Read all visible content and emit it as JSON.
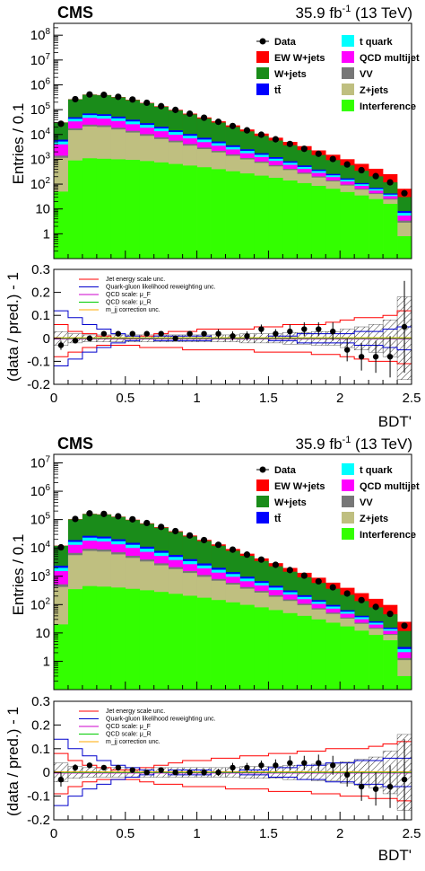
{
  "figure": {
    "experiment": "CMS",
    "luminosity": "35.9 fb",
    "lumi_exp": "-1",
    "energy": "(13 TeV)"
  },
  "legend": {
    "items": [
      {
        "label": "Data",
        "color": "#000000",
        "kind": "marker"
      },
      {
        "label": "EW W+jets",
        "color": "#ff0000",
        "kind": "box"
      },
      {
        "label": "W+jets",
        "color": "#1a8c1a",
        "kind": "box"
      },
      {
        "label": "tt̄",
        "color": "#0000ff",
        "kind": "box"
      },
      {
        "label": "t quark",
        "color": "#00ffff",
        "kind": "box"
      },
      {
        "label": "QCD multijet",
        "color": "#ff00ff",
        "kind": "box"
      },
      {
        "label": "VV",
        "color": "#777777",
        "kind": "box"
      },
      {
        "label": "Z+jets",
        "color": "#bfbf80",
        "kind": "box"
      },
      {
        "label": "Interference",
        "color": "#33ff00",
        "kind": "box"
      }
    ]
  },
  "ratio_legend": {
    "items": [
      {
        "label": "Jet energy scale unc.",
        "color": "#ff0000"
      },
      {
        "label": "Quark-gluon likelihood reweighting unc.",
        "color": "#0000cc"
      },
      {
        "label": "QCD scale:  μ_F",
        "color": "#cc00cc"
      },
      {
        "label": "QCD scale:  μ_R",
        "color": "#00cc00"
      },
      {
        "label": "m_jj correction unc.",
        "color": "#ffaa00"
      }
    ]
  },
  "axes": {
    "main_ylabel": "Entries / 0.1",
    "ratio_ylabel": "(data / pred.) - 1",
    "xlabel": "BDT'",
    "x_ticks": [
      "0",
      "0.5",
      "1",
      "1.5",
      "2",
      "2.5"
    ],
    "ratio_ticks": [
      "0.3",
      "0.2",
      "0.1",
      "0",
      "-0.1",
      "-0.2"
    ]
  },
  "chart_data": [
    {
      "type": "bar",
      "title": "",
      "stacked": true,
      "log_y": true,
      "x_bin_width": 0.1,
      "xlim": [
        0,
        2.5
      ],
      "ylim": [
        0.1,
        300000000
      ],
      "y_ticks": [
        "1",
        "10",
        "10^2",
        "10^3",
        "10^4",
        "10^5",
        "10^6",
        "10^7",
        "10^8"
      ],
      "x_bin_centers": [
        0.05,
        0.15,
        0.25,
        0.35,
        0.45,
        0.55,
        0.65,
        0.75,
        0.85,
        0.95,
        1.05,
        1.15,
        1.25,
        1.35,
        1.45,
        1.55,
        1.65,
        1.75,
        1.85,
        1.95,
        2.05,
        2.15,
        2.25,
        2.35,
        2.45
      ],
      "series": [
        {
          "name": "Interference",
          "values": [
            50,
            900,
            1100,
            1050,
            1000,
            950,
            850,
            750,
            650,
            560,
            480,
            400,
            330,
            270,
            220,
            180,
            140,
            110,
            85,
            65,
            48,
            35,
            25,
            16,
            0.8
          ]
        },
        {
          "name": "Z+jets",
          "values": [
            1100,
            14000,
            20000,
            19000,
            15000,
            11000,
            8000,
            5800,
            4200,
            3000,
            2100,
            1500,
            1050,
            720,
            500,
            340,
            230,
            150,
            100,
            64,
            40,
            25,
            15,
            8,
            2
          ]
        },
        {
          "name": "VV",
          "values": [
            250,
            2800,
            3800,
            3500,
            2800,
            2100,
            1500,
            1100,
            800,
            570,
            400,
            280,
            200,
            140,
            95,
            65,
            44,
            30,
            20,
            13,
            8,
            5,
            3,
            1.8,
            0.6
          ]
        },
        {
          "name": "QCD multijet",
          "values": [
            2600,
            16000,
            22000,
            20000,
            16000,
            11800,
            8400,
            5900,
            4100,
            2850,
            1950,
            1350,
            920,
            620,
            420,
            280,
            185,
            120,
            78,
            50,
            32,
            20,
            12,
            7,
            2
          ]
        },
        {
          "name": "t quark",
          "values": [
            1200,
            9000,
            13500,
            12500,
            10000,
            7600,
            5500,
            3900,
            2750,
            1900,
            1320,
            910,
            620,
            420,
            280,
            188,
            125,
            82,
            54,
            35,
            22,
            14,
            8.5,
            5,
            1.5
          ]
        },
        {
          "name": "tt̄",
          "values": [
            1000,
            6800,
            10000,
            9500,
            7800,
            6000,
            4400,
            3200,
            2300,
            1620,
            1130,
            790,
            545,
            370,
            250,
            168,
            112,
            74,
            48,
            31,
            20,
            12,
            7.5,
            4.3,
            1.3
          ]
        },
        {
          "name": "W+jets",
          "values": [
            24000,
            210000,
            330000,
            315000,
            262000,
            204000,
            152000,
            110000,
            78000,
            54000,
            37000,
            25000,
            16500,
            10800,
            7000,
            4500,
            2850,
            1780,
            1100,
            670,
            400,
            235,
            135,
            76,
            22
          ]
        },
        {
          "name": "EW W+jets",
          "values": [
            500,
            5000,
            7500,
            8000,
            8000,
            7500,
            7000,
            6300,
            5600,
            4900,
            4300,
            3700,
            3100,
            2600,
            2100,
            1700,
            1350,
            1050,
            800,
            600,
            440,
            310,
            210,
            135,
            35
          ]
        }
      ],
      "data_points": [
        27000,
        265000,
        410000,
        395000,
        330000,
        257000,
        190000,
        138000,
        98000,
        69000,
        47500,
        32500,
        22000,
        14700,
        9800,
        6400,
        4150,
        2650,
        1670,
        1030,
        620,
        365,
        210,
        118,
        43
      ]
    },
    {
      "type": "scatter",
      "title": "",
      "ylim": [
        -0.2,
        0.3
      ],
      "xlim": [
        0,
        2.5
      ],
      "x": [
        0.05,
        0.15,
        0.25,
        0.35,
        0.45,
        0.55,
        0.65,
        0.75,
        0.85,
        0.95,
        1.05,
        1.15,
        1.25,
        1.35,
        1.45,
        1.55,
        1.65,
        1.75,
        1.85,
        1.95,
        2.05,
        2.15,
        2.25,
        2.35,
        2.45
      ],
      "y": [
        -0.03,
        -0.01,
        0.0,
        0.02,
        0.02,
        0.02,
        0.02,
        0.02,
        0.0,
        0.02,
        0.02,
        0.02,
        0.01,
        0.01,
        0.04,
        0.02,
        0.03,
        0.04,
        0.04,
        0.03,
        -0.05,
        -0.08,
        -0.08,
        -0.08,
        0.05
      ],
      "y_err": [
        0.02,
        0.01,
        0.01,
        0.01,
        0.01,
        0.01,
        0.01,
        0.01,
        0.01,
        0.01,
        0.01,
        0.02,
        0.02,
        0.02,
        0.02,
        0.02,
        0.03,
        0.03,
        0.03,
        0.04,
        0.05,
        0.06,
        0.07,
        0.09,
        0.2
      ],
      "band_halfwidth": [
        0.03,
        0.02,
        0.015,
        0.015,
        0.015,
        0.015,
        0.015,
        0.015,
        0.015,
        0.015,
        0.015,
        0.015,
        0.015,
        0.02,
        0.02,
        0.02,
        0.025,
        0.025,
        0.03,
        0.03,
        0.04,
        0.05,
        0.06,
        0.08,
        0.18
      ],
      "jes_up": [
        0.06,
        0.03,
        0.02,
        0.01,
        0.0,
        0.0,
        0.01,
        0.02,
        0.03,
        0.03,
        0.04,
        0.04,
        0.04,
        0.04,
        0.05,
        0.05,
        0.06,
        0.06,
        0.06,
        0.07,
        0.08,
        0.09,
        0.09,
        0.1,
        0.12
      ],
      "jes_down": [
        -0.08,
        -0.06,
        -0.04,
        -0.03,
        -0.03,
        -0.03,
        -0.04,
        -0.04,
        -0.04,
        -0.05,
        -0.05,
        -0.05,
        -0.05,
        -0.05,
        -0.06,
        -0.06,
        -0.06,
        -0.06,
        -0.07,
        -0.07,
        -0.08,
        -0.09,
        -0.1,
        -0.1,
        -0.11
      ],
      "qg_up": [
        0.12,
        0.09,
        0.06,
        0.04,
        0.02,
        0.01,
        0.0,
        -0.01,
        -0.01,
        -0.01,
        -0.01,
        0.0,
        0.0,
        0.0,
        0.0,
        0.01,
        0.01,
        0.02,
        0.02,
        0.02,
        0.02,
        0.03,
        0.03,
        0.04,
        0.05
      ],
      "qg_down": [
        -0.12,
        -0.09,
        -0.06,
        -0.04,
        -0.02,
        -0.01,
        0.0,
        0.01,
        0.01,
        0.01,
        0.01,
        0.0,
        0.0,
        0.0,
        0.0,
        -0.01,
        -0.01,
        -0.02,
        -0.02,
        -0.02,
        -0.02,
        -0.03,
        -0.03,
        -0.04,
        -0.05
      ]
    },
    {
      "type": "bar",
      "title": "",
      "stacked": true,
      "log_y": true,
      "x_bin_width": 0.1,
      "xlim": [
        0,
        2.5
      ],
      "ylim": [
        0.1,
        20000000
      ],
      "y_ticks": [
        "1",
        "10",
        "10^2",
        "10^3",
        "10^4",
        "10^5",
        "10^6",
        "10^7"
      ],
      "x_bin_centers": [
        0.05,
        0.15,
        0.25,
        0.35,
        0.45,
        0.55,
        0.65,
        0.75,
        0.85,
        0.95,
        1.05,
        1.15,
        1.25,
        1.35,
        1.45,
        1.55,
        1.65,
        1.75,
        1.85,
        1.95,
        2.05,
        2.15,
        2.25,
        2.35,
        2.45
      ],
      "series": [
        {
          "name": "Interference",
          "values": [
            20,
            350,
            450,
            430,
            400,
            360,
            320,
            280,
            240,
            205,
            175,
            145,
            120,
            98,
            80,
            64,
            50,
            40,
            30,
            23,
            17,
            12,
            8.5,
            5.5,
            0.3
          ]
        },
        {
          "name": "Z+jets",
          "values": [
            400,
            5200,
            7400,
            7000,
            5500,
            4100,
            3000,
            2150,
            1550,
            1100,
            780,
            550,
            390,
            265,
            185,
            125,
            85,
            56,
            37,
            24,
            15,
            9,
            5.5,
            3,
            0.8
          ]
        },
        {
          "name": "VV",
          "values": [
            100,
            1100,
            1500,
            1400,
            1100,
            820,
            600,
            430,
            310,
            220,
            155,
            108,
            76,
            53,
            37,
            25,
            17,
            11.5,
            7.5,
            5,
            3,
            2,
            1.2,
            0.7,
            0.2
          ]
        },
        {
          "name": "QCD multijet",
          "values": [
            1000,
            6200,
            8600,
            8000,
            6400,
            4700,
            3350,
            2350,
            1640,
            1140,
            780,
            540,
            370,
            250,
            170,
            112,
            74,
            48,
            31,
            20,
            12.5,
            7.5,
            4.5,
            2.7,
            0.8
          ]
        },
        {
          "name": "t quark",
          "values": [
            460,
            3400,
            5100,
            4750,
            3800,
            2900,
            2100,
            1480,
            1050,
            730,
            505,
            350,
            240,
            162,
            108,
            72,
            48,
            31,
            20,
            13.3,
            8.5,
            5.3,
            3.2,
            1.9,
            0.6
          ]
        },
        {
          "name": "tt̄",
          "values": [
            380,
            2600,
            3800,
            3600,
            2950,
            2300,
            1680,
            1220,
            880,
            620,
            432,
            302,
            208,
            141,
            95,
            64,
            42,
            28,
            18.5,
            12,
            7.5,
            4.6,
            2.8,
            1.6,
            0.5
          ]
        },
        {
          "name": "W+jets",
          "values": [
            9500,
            83000,
            130000,
            125000,
            104000,
            81000,
            60000,
            43600,
            31000,
            21500,
            14700,
            9900,
            6550,
            4280,
            2780,
            1780,
            1130,
            705,
            435,
            265,
            158,
            93,
            54,
            30,
            8.5
          ]
        },
        {
          "name": "EW W+jets",
          "values": [
            200,
            1900,
            2900,
            3100,
            3100,
            2900,
            2700,
            2450,
            2170,
            1900,
            1650,
            1420,
            1200,
            1000,
            815,
            655,
            520,
            405,
            310,
            232,
            170,
            120,
            80,
            52,
            13
          ]
        }
      ],
      "data_points": [
        10500,
        105000,
        165000,
        158000,
        131000,
        102000,
        75800,
        55000,
        39200,
        27500,
        18900,
        12900,
        8700,
        5800,
        3880,
        2540,
        1650,
        1050,
        660,
        408,
        246,
        144,
        83,
        47,
        18
      ]
    },
    {
      "type": "scatter",
      "title": "",
      "ylim": [
        -0.2,
        0.3
      ],
      "xlim": [
        0,
        2.5
      ],
      "x": [
        0.05,
        0.15,
        0.25,
        0.35,
        0.45,
        0.55,
        0.65,
        0.75,
        0.85,
        0.95,
        1.05,
        1.15,
        1.25,
        1.35,
        1.45,
        1.55,
        1.65,
        1.75,
        1.85,
        1.95,
        2.05,
        2.15,
        2.25,
        2.35,
        2.45
      ],
      "y": [
        -0.03,
        0.02,
        0.03,
        0.02,
        0.02,
        0.01,
        0.0,
        0.01,
        0.0,
        0.0,
        0.0,
        0.0,
        0.02,
        0.02,
        0.03,
        0.03,
        0.04,
        0.04,
        0.04,
        0.03,
        -0.01,
        -0.06,
        -0.07,
        -0.06,
        -0.03
      ],
      "y_err": [
        0.03,
        0.015,
        0.01,
        0.01,
        0.01,
        0.01,
        0.01,
        0.01,
        0.01,
        0.01,
        0.015,
        0.015,
        0.02,
        0.02,
        0.02,
        0.025,
        0.03,
        0.03,
        0.035,
        0.04,
        0.05,
        0.06,
        0.07,
        0.09,
        0.17
      ],
      "band_halfwidth": [
        0.04,
        0.025,
        0.02,
        0.02,
        0.02,
        0.02,
        0.02,
        0.02,
        0.02,
        0.02,
        0.02,
        0.02,
        0.02,
        0.025,
        0.025,
        0.025,
        0.03,
        0.03,
        0.035,
        0.035,
        0.045,
        0.055,
        0.065,
        0.09,
        0.16
      ],
      "jes_up": [
        0.08,
        0.05,
        0.03,
        0.02,
        0.01,
        0.01,
        0.02,
        0.03,
        0.04,
        0.05,
        0.05,
        0.06,
        0.06,
        0.07,
        0.07,
        0.08,
        0.08,
        0.09,
        0.09,
        0.1,
        0.1,
        0.1,
        0.11,
        0.12,
        0.13
      ],
      "jes_down": [
        -0.09,
        -0.06,
        -0.04,
        -0.03,
        -0.03,
        -0.03,
        -0.04,
        -0.05,
        -0.05,
        -0.06,
        -0.06,
        -0.06,
        -0.07,
        -0.07,
        -0.07,
        -0.08,
        -0.08,
        -0.08,
        -0.09,
        -0.09,
        -0.1,
        -0.1,
        -0.11,
        -0.11,
        -0.12
      ],
      "qg_up": [
        0.14,
        0.1,
        0.07,
        0.05,
        0.03,
        0.02,
        0.01,
        0.0,
        -0.01,
        -0.01,
        -0.01,
        0.0,
        0.0,
        0.01,
        0.01,
        0.02,
        0.02,
        0.03,
        0.03,
        0.04,
        0.04,
        0.05,
        0.05,
        0.06,
        0.06
      ],
      "qg_down": [
        -0.14,
        -0.1,
        -0.07,
        -0.05,
        -0.03,
        -0.02,
        -0.01,
        0.0,
        0.01,
        0.01,
        0.01,
        0.0,
        0.0,
        -0.01,
        -0.01,
        -0.02,
        -0.02,
        -0.03,
        -0.03,
        -0.04,
        -0.04,
        -0.05,
        -0.05,
        -0.06,
        -0.06
      ]
    }
  ]
}
